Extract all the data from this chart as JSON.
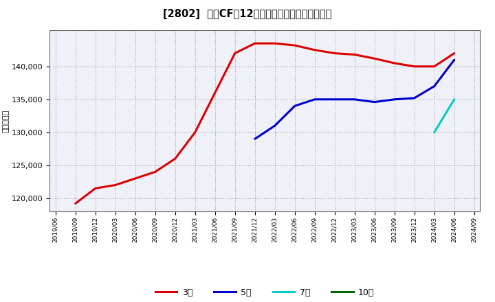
{
  "title": "[2802]  営業CFの12か月移動合計の平均値の推移",
  "ylabel": "（百万円）",
  "background_color": "#ffffff",
  "plot_bg_color": "#f0f0f8",
  "grid_color": "#aaaaaa",
  "ylim": [
    118000,
    145500
  ],
  "yticks": [
    120000,
    125000,
    130000,
    135000,
    140000
  ],
  "series": {
    "3y": {
      "label": "3年",
      "color": "#dd0000",
      "x": [
        "2019/09",
        "2019/12",
        "2020/03",
        "2020/06",
        "2020/09",
        "2020/12",
        "2021/03",
        "2021/06",
        "2021/09",
        "2021/12",
        "2022/03",
        "2022/06",
        "2022/09",
        "2022/12",
        "2023/03",
        "2023/06",
        "2023/09",
        "2023/12",
        "2024/03",
        "2024/06"
      ],
      "y": [
        119200,
        121500,
        122000,
        123000,
        124000,
        126000,
        130000,
        136000,
        142000,
        143500,
        143500,
        143200,
        142500,
        142000,
        141800,
        141200,
        140500,
        140000,
        140000,
        142000
      ]
    },
    "5y": {
      "label": "5年",
      "color": "#0000cc",
      "x": [
        "2021/12",
        "2022/03",
        "2022/06",
        "2022/09",
        "2022/12",
        "2023/03",
        "2023/06",
        "2023/09",
        "2023/12",
        "2024/03",
        "2024/06"
      ],
      "y": [
        129000,
        131000,
        134000,
        135000,
        135000,
        135000,
        134600,
        135000,
        135200,
        137000,
        141000
      ]
    },
    "7y": {
      "label": "7年",
      "color": "#00cccc",
      "x": [
        "2024/03",
        "2024/06"
      ],
      "y": [
        130000,
        135000
      ]
    },
    "10y": {
      "label": "10年",
      "color": "#006600",
      "x": [],
      "y": []
    }
  },
  "xticks": [
    "2019/06",
    "2019/09",
    "2019/12",
    "2020/03",
    "2020/06",
    "2020/09",
    "2020/12",
    "2021/03",
    "2021/06",
    "2021/09",
    "2021/12",
    "2022/03",
    "2022/06",
    "2022/09",
    "2022/12",
    "2023/03",
    "2023/06",
    "2023/09",
    "2023/12",
    "2024/03",
    "2024/06",
    "2024/09"
  ],
  "legend_labels": [
    "3年",
    "5年",
    "7年",
    "10年"
  ],
  "legend_colors": [
    "#dd0000",
    "#0000cc",
    "#00cccc",
    "#006600"
  ]
}
